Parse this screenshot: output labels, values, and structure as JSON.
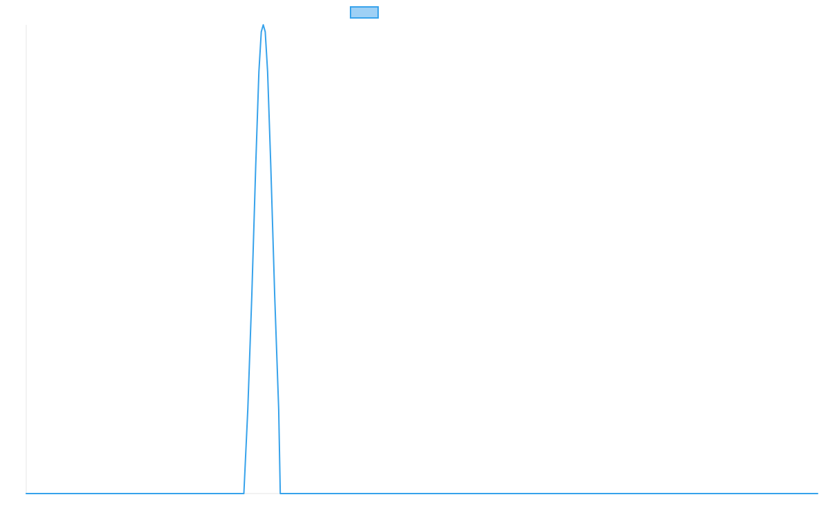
{
  "chart_data": {
    "type": "line",
    "title": "",
    "xlabel": "",
    "ylabel": "",
    "grid": false,
    "legend_position": "top",
    "colors": {
      "line": "#36a2eb",
      "legend_fill": "#9ed0f5",
      "axis": "#e6e6e6"
    },
    "xlim": [
      0,
      100
    ],
    "ylim": [
      0,
      1
    ],
    "series": [
      {
        "points": [
          [
            0,
            0
          ],
          [
            27.5,
            0
          ],
          [
            28.0,
            0.18
          ],
          [
            28.5,
            0.42
          ],
          [
            29.0,
            0.7
          ],
          [
            29.4,
            0.9
          ],
          [
            29.7,
            0.985
          ],
          [
            29.95,
            1.0
          ],
          [
            30.2,
            0.985
          ],
          [
            30.5,
            0.9
          ],
          [
            30.9,
            0.7
          ],
          [
            31.4,
            0.42
          ],
          [
            31.9,
            0.18
          ],
          [
            32.1,
            0
          ],
          [
            100,
            0
          ]
        ]
      }
    ]
  }
}
